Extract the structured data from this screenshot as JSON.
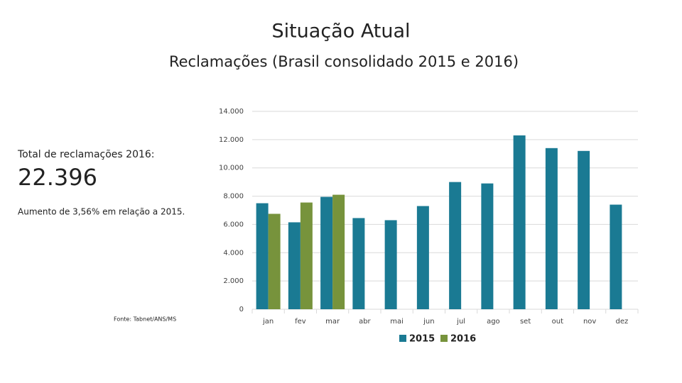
{
  "header": {
    "title": "Situação Atual",
    "subtitle": "Reclamações (Brasil consolidado 2015 e 2016)"
  },
  "summary": {
    "label": "Total de reclamações 2016:",
    "total": "22.396",
    "note": "Aumento de 3,56% em relação a 2015.",
    "source": "Fonte: Tabnet/ANS/MS"
  },
  "chart_data": {
    "type": "bar",
    "categories": [
      "jan",
      "fev",
      "mar",
      "abr",
      "mai",
      "jun",
      "jul",
      "ago",
      "set",
      "out",
      "nov",
      "dez"
    ],
    "series": [
      {
        "name": "2015",
        "color": "#1a7a93",
        "values": [
          7500,
          6150,
          7950,
          6450,
          6300,
          7300,
          9000,
          8900,
          12300,
          11400,
          11200,
          7400
        ]
      },
      {
        "name": "2016",
        "color": "#77933c",
        "values": [
          6750,
          7550,
          8100,
          null,
          null,
          null,
          null,
          null,
          null,
          null,
          null,
          null
        ]
      }
    ],
    "ylim": [
      0,
      14000
    ],
    "yticks": [
      0,
      {
        "value": 2000,
        "label": "2.000"
      },
      {
        "value": 4000,
        "label": "4.000"
      },
      {
        "value": 6000,
        "label": "6.000"
      },
      {
        "value": 8000,
        "label": "8.000"
      },
      {
        "value": 10000,
        "label": "10.000"
      },
      {
        "value": 12000,
        "label": "12.000"
      },
      {
        "value": 14000,
        "label": "14.000"
      }
    ],
    "grid": true,
    "legend": "bottom"
  }
}
